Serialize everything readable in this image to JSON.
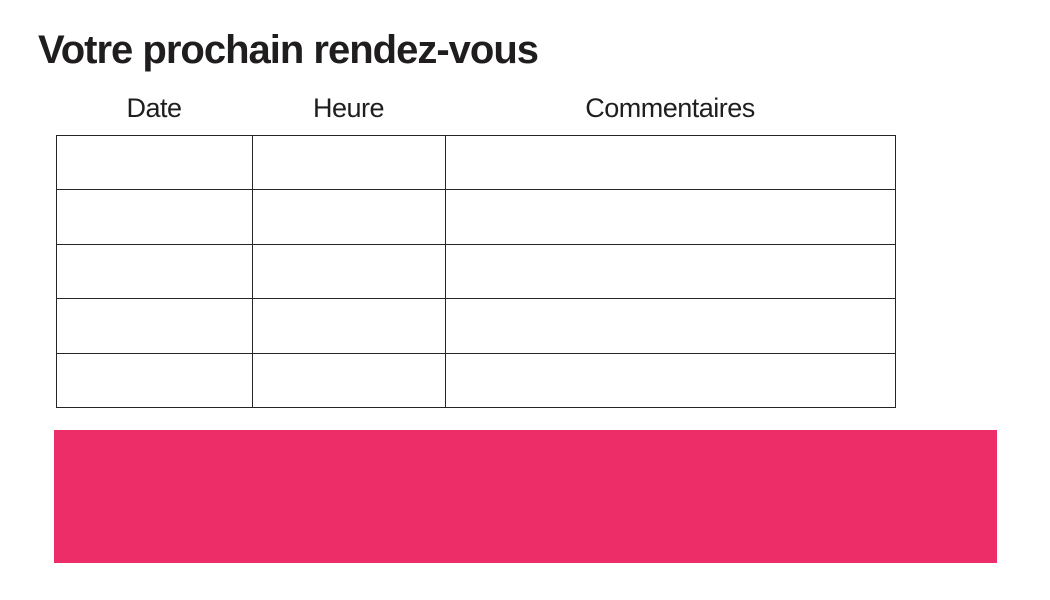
{
  "page": {
    "title": "Votre prochain rendez-vous"
  },
  "table": {
    "headers": [
      "Date",
      "Heure",
      "Commentaires"
    ],
    "rows": [
      [
        "",
        "",
        ""
      ],
      [
        "",
        "",
        ""
      ],
      [
        "",
        "",
        ""
      ],
      [
        "",
        "",
        ""
      ],
      [
        "",
        "",
        ""
      ]
    ]
  },
  "banner": {
    "text": ""
  },
  "colors": {
    "accent_pink": "#ed2d67",
    "text": "#1f1d1e",
    "table_border": "#262425",
    "background": "#ffffff"
  }
}
